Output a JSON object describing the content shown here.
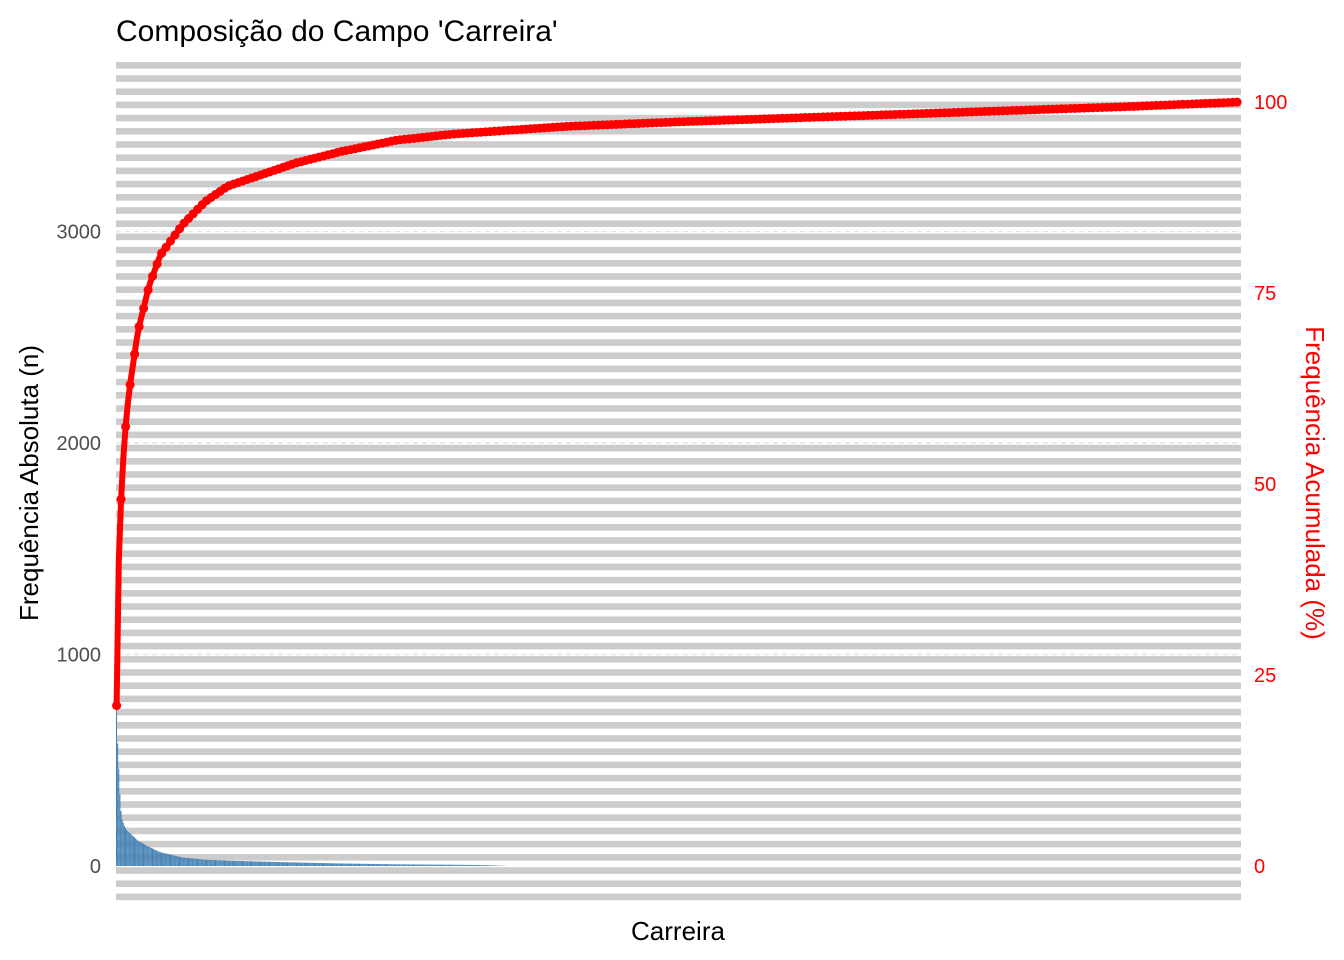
{
  "chart_data": {
    "type": "bar",
    "title": "Composição do Campo 'Carreira'",
    "xlabel": "Carreira",
    "ylabel": "Frequência Absoluta (n)",
    "y2label": "Frequência Acumulada (%)",
    "ylim": [
      0,
      3600
    ],
    "y2lim": [
      0,
      100
    ],
    "yticks": [
      "0",
      "1000",
      "2000",
      "3000"
    ],
    "y2ticks": [
      "0",
      "25",
      "50",
      "75",
      "100"
    ],
    "grid": "horizontal dashed",
    "n_categories": 1000,
    "series": [
      {
        "name": "n",
        "type": "bar",
        "color": "#4682b4",
        "values_by_rank": [
          [
            1,
            760
          ],
          [
            2,
            580
          ],
          [
            3,
            460
          ],
          [
            4,
            340
          ],
          [
            5,
            260
          ],
          [
            6,
            220
          ],
          [
            8,
            190
          ],
          [
            10,
            170
          ],
          [
            15,
            145
          ],
          [
            20,
            120
          ],
          [
            30,
            90
          ],
          [
            40,
            65
          ],
          [
            60,
            40
          ],
          [
            80,
            30
          ],
          [
            100,
            25
          ],
          [
            150,
            18
          ],
          [
            200,
            12
          ],
          [
            250,
            8
          ],
          [
            300,
            6
          ],
          [
            330,
            4
          ],
          [
            350,
            0
          ],
          [
            1000,
            0
          ]
        ]
      },
      {
        "name": "%",
        "type": "line+points",
        "color": "#ff0000",
        "values_by_rank": [
          [
            1,
            21
          ],
          [
            2,
            33
          ],
          [
            3,
            40
          ],
          [
            5,
            48
          ],
          [
            8,
            56
          ],
          [
            12,
            62
          ],
          [
            20,
            70
          ],
          [
            30,
            76
          ],
          [
            40,
            80
          ],
          [
            60,
            84
          ],
          [
            80,
            87
          ],
          [
            100,
            89
          ],
          [
            130,
            90.5
          ],
          [
            160,
            92
          ],
          [
            200,
            93.5
          ],
          [
            250,
            95
          ],
          [
            300,
            95.8
          ],
          [
            350,
            96.3
          ],
          [
            400,
            96.8
          ],
          [
            500,
            97.4
          ],
          [
            600,
            97.9
          ],
          [
            700,
            98.4
          ],
          [
            800,
            98.9
          ],
          [
            900,
            99.4
          ],
          [
            1000,
            100
          ]
        ]
      }
    ]
  }
}
